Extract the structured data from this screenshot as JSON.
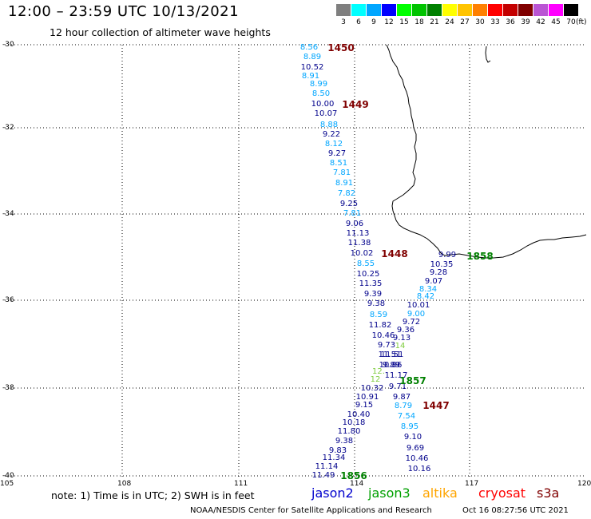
{
  "header": {
    "title": "12:00 – 23:59 UTC 10/13/2021",
    "subtitle": "12 hour collection of altimeter wave heights"
  },
  "legend": {
    "unit": "(ft)",
    "bins": [
      {
        "label": "3",
        "color": "#7f7f7f"
      },
      {
        "label": "6",
        "color": "#00ffff"
      },
      {
        "label": "9",
        "color": "#00a6ff"
      },
      {
        "label": "12",
        "color": "#0000ff"
      },
      {
        "label": "15",
        "color": "#00ff00"
      },
      {
        "label": "18",
        "color": "#00c400"
      },
      {
        "label": "21",
        "color": "#008000"
      },
      {
        "label": "24",
        "color": "#ffff00"
      },
      {
        "label": "27",
        "color": "#ffc400"
      },
      {
        "label": "30",
        "color": "#ff8000"
      },
      {
        "label": "33",
        "color": "#ff0000"
      },
      {
        "label": "36",
        "color": "#c40000"
      },
      {
        "label": "39",
        "color": "#800000"
      },
      {
        "label": "42",
        "color": "#ba55d3"
      },
      {
        "label": "45",
        "color": "#ff00ff"
      },
      {
        "label": "70",
        "color": "#000000"
      }
    ]
  },
  "axes": {
    "lat_labels": [
      "-30",
      "-32",
      "-34",
      "-36",
      "-38",
      "-40"
    ],
    "lon_labels": [
      "105",
      "108",
      "111",
      "114",
      "117",
      "120"
    ]
  },
  "colors": {
    "light": "#00a6ff",
    "dark": "#00008b",
    "green": "#7fcc3f",
    "time_red": "#800000",
    "time_green": "#008000"
  },
  "track_a": [
    {
      "v": "8.56",
      "c": "light"
    },
    {
      "v": "8.89",
      "c": "light"
    },
    {
      "v": "10.52",
      "c": "dark"
    },
    {
      "v": "8.91",
      "c": "light"
    },
    {
      "v": "8.99",
      "c": "light"
    },
    {
      "v": "8.50",
      "c": "light"
    },
    {
      "v": "10.00",
      "c": "dark"
    },
    {
      "v": "10.07",
      "c": "dark"
    },
    {
      "v": "8.88",
      "c": "light"
    },
    {
      "v": "9.22",
      "c": "dark"
    },
    {
      "v": "8.12",
      "c": "light"
    },
    {
      "v": "9.27",
      "c": "dark"
    },
    {
      "v": "8.51",
      "c": "light"
    },
    {
      "v": "7.81",
      "c": "light"
    },
    {
      "v": "8.91",
      "c": "light"
    },
    {
      "v": "7.82",
      "c": "light"
    },
    {
      "v": "9.25",
      "c": "dark"
    },
    {
      "v": "7.81",
      "c": "light"
    },
    {
      "v": "9.06",
      "c": "dark"
    },
    {
      "v": "11.13",
      "c": "dark"
    },
    {
      "v": "11.38",
      "c": "dark"
    },
    {
      "v": "10.02",
      "c": "dark"
    },
    {
      "v": "8.55",
      "c": "light"
    },
    {
      "v": "10.25",
      "c": "dark"
    },
    {
      "v": "11.35",
      "c": "dark"
    },
    {
      "v": "9.39",
      "c": "dark"
    },
    {
      "v": "9.38",
      "c": "dark"
    },
    {
      "v": "8.59",
      "c": "light"
    },
    {
      "v": "11.82",
      "c": "dark"
    },
    {
      "v": "10.46",
      "c": "dark"
    },
    {
      "v": "9.73",
      "c": "dark"
    },
    {
      "v": "11.51",
      "c": "dark"
    },
    {
      "v": "9.89",
      "c": "dark"
    },
    {
      "v": "11.17",
      "c": "dark"
    },
    {
      "v": "9.71",
      "c": "dark"
    },
    {
      "v": "9.87",
      "c": "dark"
    },
    {
      "v": "8.79",
      "c": "light"
    },
    {
      "v": "7.54",
      "c": "light"
    },
    {
      "v": "8.95",
      "c": "light"
    },
    {
      "v": "9.10",
      "c": "dark"
    },
    {
      "v": "9.69",
      "c": "dark"
    },
    {
      "v": "10.46",
      "c": "dark"
    },
    {
      "v": "10.16",
      "c": "dark"
    }
  ],
  "track_b": [
    {
      "v": "9.99",
      "c": "dark"
    },
    {
      "v": "10.35",
      "c": "dark"
    },
    {
      "v": "9.28",
      "c": "dark"
    },
    {
      "v": "9.07",
      "c": "dark"
    },
    {
      "v": "8.34",
      "c": "light"
    },
    {
      "v": "8.42",
      "c": "light"
    },
    {
      "v": "10.01",
      "c": "dark"
    },
    {
      "v": "9.00",
      "c": "light"
    },
    {
      "v": "9.72",
      "c": "dark"
    },
    {
      "v": "9.36",
      "c": "dark"
    },
    {
      "v": "9.13",
      "c": "dark"
    },
    {
      "v": "14",
      "c": "green"
    },
    {
      "v": "11.51",
      "c": "dark"
    },
    {
      "v": "10.86",
      "c": "dark"
    },
    {
      "v": "12.",
      "c": "green"
    },
    {
      "v": "12",
      "c": "green"
    },
    {
      "v": "10.32",
      "c": "dark"
    },
    {
      "v": "10.91",
      "c": "dark"
    },
    {
      "v": "9.15",
      "c": "dark"
    },
    {
      "v": "10.40",
      "c": "dark"
    },
    {
      "v": "10.18",
      "c": "dark"
    },
    {
      "v": "11.80",
      "c": "dark"
    },
    {
      "v": "9.38",
      "c": "dark"
    },
    {
      "v": "9.83",
      "c": "dark"
    },
    {
      "v": "11.34",
      "c": "dark"
    },
    {
      "v": "11.14",
      "c": "dark"
    },
    {
      "v": "11.49",
      "c": "dark"
    }
  ],
  "time_labels": [
    {
      "t": "1450",
      "c": "time_red"
    },
    {
      "t": "1449",
      "c": "time_red"
    },
    {
      "t": "1448",
      "c": "time_red"
    },
    {
      "t": "1447",
      "c": "time_red"
    },
    {
      "t": "1858",
      "c": "time_green"
    },
    {
      "t": "1857",
      "c": "time_green"
    },
    {
      "t": "1856",
      "c": "time_green"
    }
  ],
  "footer": {
    "note": "note:  1) Time is in UTC; 2) SWH is in feet",
    "missions": [
      {
        "name": "jason2",
        "color": "#0000cd"
      },
      {
        "name": "jason3",
        "color": "#00a000"
      },
      {
        "name": "altika",
        "color": "#ffa500"
      },
      {
        "name": "cryosat",
        "color": "#ff0000"
      },
      {
        "name": "s3a",
        "color": "#800000"
      }
    ],
    "credit": "NOAA/NESDIS Center for Satellite Applications and Research",
    "timestamp": "Oct 16 08:27:56 UTC 2021"
  }
}
